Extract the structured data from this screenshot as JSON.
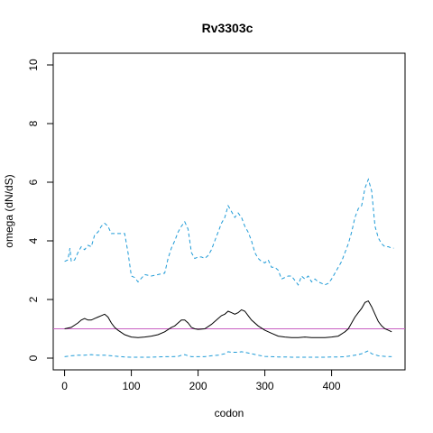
{
  "chart_data": {
    "type": "line",
    "title": "Rv3303c",
    "xlabel": "codon",
    "ylabel": "omega (dN/dS)",
    "xlim": [
      -17,
      510
    ],
    "ylim": [
      -0.4,
      10.4
    ],
    "xticks": [
      0,
      100,
      200,
      300,
      400
    ],
    "yticks": [
      0,
      2,
      4,
      6,
      8,
      10
    ],
    "grid": false,
    "colors": {
      "mean": "#000000",
      "ci": "#1f9bd7",
      "reference": "#c85fc2"
    },
    "reference_line": {
      "y": 1
    },
    "series": [
      {
        "style": "dashed",
        "color": "#1f9bd7",
        "x": [
          0,
          5,
          8,
          10,
          15,
          20,
          25,
          30,
          35,
          40,
          45,
          50,
          55,
          60,
          65,
          70,
          80,
          90,
          95,
          100,
          105,
          110,
          120,
          130,
          140,
          150,
          155,
          160,
          165,
          170,
          175,
          180,
          185,
          190,
          195,
          200,
          205,
          210,
          215,
          220,
          225,
          230,
          235,
          240,
          245,
          250,
          255,
          260,
          265,
          270,
          275,
          280,
          285,
          290,
          295,
          300,
          305,
          310,
          315,
          320,
          325,
          330,
          335,
          340,
          345,
          350,
          355,
          360,
          365,
          370,
          375,
          380,
          385,
          390,
          395,
          400,
          405,
          410,
          415,
          420,
          425,
          430,
          435,
          440,
          445,
          450,
          455,
          460,
          465,
          470,
          475,
          480,
          485,
          490,
          493
        ],
        "y": [
          3.3,
          3.35,
          3.75,
          3.3,
          3.35,
          3.6,
          3.8,
          3.7,
          3.85,
          3.8,
          4.2,
          4.3,
          4.5,
          4.6,
          4.5,
          4.25,
          4.25,
          4.25,
          3.6,
          2.8,
          2.75,
          2.6,
          2.85,
          2.8,
          2.85,
          2.9,
          3.4,
          3.75,
          4.0,
          4.3,
          4.5,
          4.65,
          4.4,
          3.6,
          3.4,
          3.45,
          3.45,
          3.4,
          3.5,
          3.7,
          4.0,
          4.3,
          4.6,
          4.8,
          5.2,
          5.0,
          4.8,
          4.95,
          4.8,
          4.5,
          4.3,
          4.0,
          3.6,
          3.4,
          3.3,
          3.25,
          3.35,
          3.1,
          3.1,
          3.0,
          2.7,
          2.75,
          2.8,
          2.8,
          2.65,
          2.5,
          2.8,
          2.7,
          2.8,
          2.6,
          2.7,
          2.6,
          2.55,
          2.5,
          2.55,
          2.7,
          2.9,
          3.1,
          3.3,
          3.6,
          3.9,
          4.3,
          4.8,
          5.1,
          5.2,
          5.8,
          6.1,
          5.7,
          4.5,
          4.1,
          3.9,
          3.8,
          3.8,
          3.75,
          3.75
        ]
      },
      {
        "style": "solid",
        "color": "#000000",
        "x": [
          0,
          10,
          20,
          25,
          30,
          35,
          40,
          45,
          50,
          55,
          60,
          65,
          70,
          75,
          80,
          90,
          100,
          110,
          120,
          130,
          140,
          150,
          160,
          165,
          170,
          175,
          180,
          185,
          190,
          195,
          200,
          210,
          220,
          225,
          230,
          235,
          240,
          245,
          250,
          255,
          260,
          265,
          270,
          275,
          280,
          290,
          300,
          310,
          320,
          330,
          340,
          350,
          360,
          370,
          380,
          390,
          400,
          410,
          420,
          425,
          430,
          435,
          440,
          445,
          450,
          455,
          460,
          465,
          470,
          475,
          480,
          485,
          490
        ],
        "y": [
          1.0,
          1.05,
          1.2,
          1.3,
          1.35,
          1.3,
          1.3,
          1.35,
          1.4,
          1.45,
          1.5,
          1.4,
          1.2,
          1.05,
          0.95,
          0.8,
          0.72,
          0.7,
          0.72,
          0.75,
          0.8,
          0.9,
          1.05,
          1.1,
          1.2,
          1.3,
          1.3,
          1.2,
          1.05,
          1.0,
          0.98,
          1.0,
          1.15,
          1.25,
          1.35,
          1.45,
          1.5,
          1.6,
          1.55,
          1.5,
          1.55,
          1.65,
          1.6,
          1.45,
          1.3,
          1.1,
          0.95,
          0.85,
          0.75,
          0.72,
          0.7,
          0.7,
          0.72,
          0.7,
          0.7,
          0.7,
          0.72,
          0.75,
          0.9,
          1.0,
          1.2,
          1.4,
          1.55,
          1.7,
          1.9,
          1.95,
          1.75,
          1.5,
          1.25,
          1.1,
          1.0,
          0.95,
          0.9
        ]
      },
      {
        "style": "dashed",
        "color": "#1f9bd7",
        "x": [
          0,
          10,
          20,
          30,
          40,
          50,
          60,
          70,
          80,
          90,
          100,
          110,
          120,
          130,
          140,
          150,
          160,
          170,
          175,
          180,
          185,
          190,
          200,
          210,
          220,
          230,
          240,
          245,
          250,
          260,
          265,
          270,
          280,
          290,
          300,
          310,
          320,
          330,
          340,
          350,
          360,
          370,
          380,
          390,
          400,
          410,
          420,
          430,
          440,
          445,
          450,
          455,
          460,
          470,
          480,
          490
        ],
        "y": [
          0.05,
          0.08,
          0.1,
          0.1,
          0.12,
          0.1,
          0.1,
          0.08,
          0.06,
          0.04,
          0.03,
          0.03,
          0.03,
          0.03,
          0.04,
          0.05,
          0.05,
          0.06,
          0.1,
          0.12,
          0.08,
          0.05,
          0.05,
          0.05,
          0.08,
          0.1,
          0.15,
          0.22,
          0.2,
          0.2,
          0.22,
          0.2,
          0.15,
          0.1,
          0.06,
          0.05,
          0.04,
          0.04,
          0.03,
          0.03,
          0.03,
          0.03,
          0.03,
          0.03,
          0.04,
          0.04,
          0.05,
          0.08,
          0.12,
          0.15,
          0.2,
          0.25,
          0.15,
          0.08,
          0.06,
          0.05
        ]
      }
    ]
  }
}
